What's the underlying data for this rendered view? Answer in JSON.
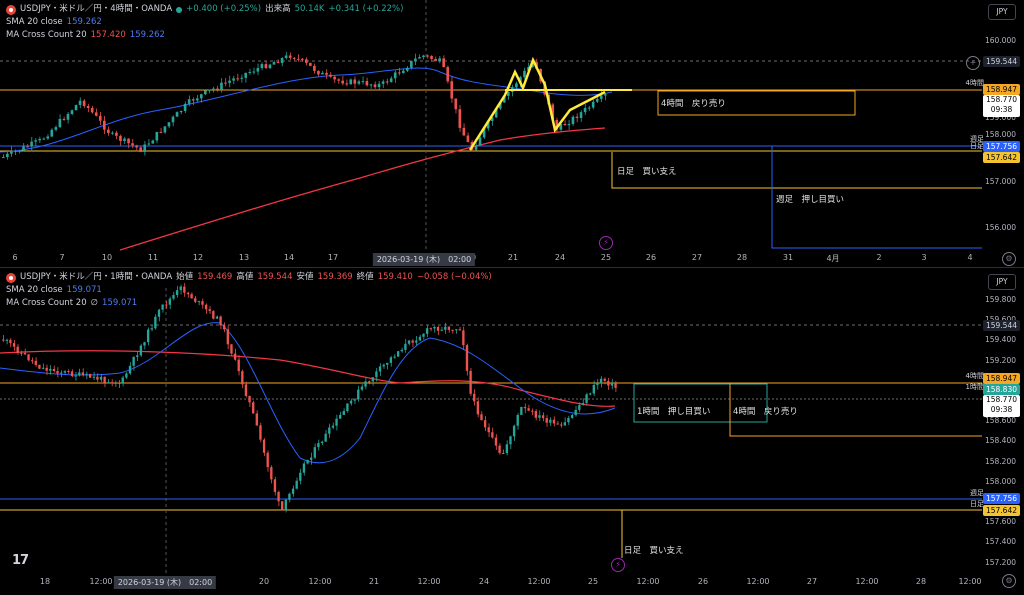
{
  "top": {
    "title": "USDJPY・米ドル／円・4時間・OANDA",
    "change": "+0.400 (+0.25%)",
    "volume_label": "出来高",
    "volume_value": "50.14K",
    "volume_change": "+0.341 (+0.22%)",
    "sma_label": "SMA 20 close",
    "sma_value": "159.262",
    "mac_label": "MA Cross Count 20",
    "mac_value1": "157.420",
    "mac_value2": "159.262",
    "currency": "JPY",
    "price_ticks": [
      "160.000",
      "159.000",
      "158.000",
      "157.000",
      "156.000"
    ],
    "boxes": {
      "p1": "159.544",
      "p2": "158.947",
      "p3": "158.770",
      "p3b": "09:38",
      "p4": "157.756",
      "p5": "157.642"
    },
    "tags": {
      "t1": "4時間",
      "t2": "週足",
      "t3": "日足"
    },
    "zones": {
      "z1": "4時間　戻り売り",
      "z2": "日足　買い支え",
      "z3": "週足　押し目買い"
    },
    "xticks": [
      "6",
      "7",
      "10",
      "11",
      "12",
      "13",
      "14",
      "17",
      "18",
      "20",
      "21",
      "24",
      "25",
      "26",
      "27",
      "28",
      "31",
      "4月",
      "2",
      "3",
      "4"
    ],
    "xsel": "2026-03-19 (木)　02:00"
  },
  "bottom": {
    "title": "USDJPY・米ドル／円・1時間・OANDA",
    "ohlc_open_lbl": "始値",
    "ohlc_open": "159.469",
    "ohlc_high_lbl": "高値",
    "ohlc_high": "159.544",
    "ohlc_low_lbl": "安値",
    "ohlc_low": "159.369",
    "ohlc_close_lbl": "終値",
    "ohlc_close": "159.410",
    "ohlc_change": "−0.058 (−0.04%)",
    "sma_label": "SMA 20 close",
    "sma_value": "159.071",
    "mac_label": "MA Cross Count 20",
    "mac_sym": "∅",
    "mac_value": "159.071",
    "currency": "JPY",
    "price_ticks": [
      "159.800",
      "159.600",
      "159.400",
      "159.200",
      "159.000",
      "158.800",
      "158.600",
      "158.400",
      "158.200",
      "158.000",
      "157.800",
      "157.600",
      "157.400",
      "157.200"
    ],
    "boxes": {
      "p1": "159.544",
      "p2": "158.947",
      "p2b": "158.830",
      "p3": "158.770",
      "p3b": "09:38",
      "p4": "157.756",
      "p5": "157.642"
    },
    "tags": {
      "t1": "4時間",
      "t1b": "1時間",
      "t2": "週足",
      "t3": "日足"
    },
    "zones": {
      "z1": "1時間　押し目買い",
      "z2": "4時間　戻り売り",
      "z3": "日足　買い支え"
    },
    "xticks": [
      "18",
      "12:00",
      "19",
      "20",
      "12:00",
      "21",
      "12:00",
      "24",
      "12:00",
      "25",
      "12:00",
      "26",
      "12:00",
      "27",
      "12:00",
      "28",
      "12:00"
    ],
    "xsel": "2026-03-19 (木)　02:00"
  },
  "colors": {
    "up": "#ef5350",
    "down": "#26a69a",
    "orange": "#f5a623",
    "yellow": "#f4c430",
    "blue": "#2962ff"
  }
}
